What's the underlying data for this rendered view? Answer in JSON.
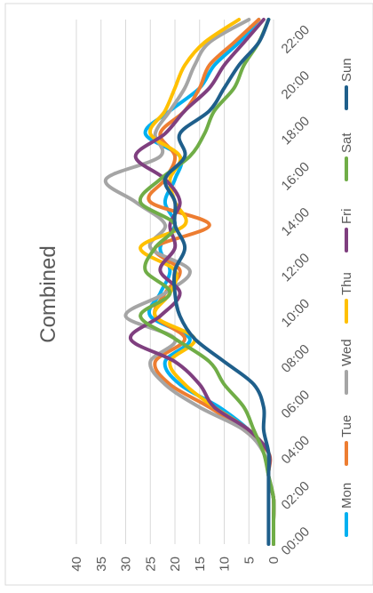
{
  "chart_data": {
    "type": "line",
    "title": "Combined",
    "xlabel": "",
    "ylabel": "",
    "x_ticks": [
      "00:00",
      "02:00",
      "04:00",
      "06:00",
      "08:00",
      "10:00",
      "12:00",
      "14:00",
      "16:00",
      "18:00",
      "20:00",
      "22:00"
    ],
    "y_ticks": [
      "0",
      "5",
      "10",
      "15",
      "20",
      "25",
      "30",
      "35",
      "40"
    ],
    "ylim": [
      0,
      40
    ],
    "xlim": [
      0,
      23
    ],
    "grid": true,
    "legend_position": "bottom",
    "orientation": "rotated-90-ccw",
    "x": [
      0,
      1,
      2,
      3,
      4,
      5,
      6,
      7,
      8,
      9,
      10,
      11,
      12,
      13,
      14,
      15,
      16,
      17,
      18,
      19,
      20,
      21,
      22,
      23
    ],
    "series": [
      {
        "name": "Mon",
        "color": "#00b0f0",
        "values": [
          0,
          0,
          0,
          1,
          1,
          5,
          11,
          19,
          22,
          17,
          25,
          23,
          21,
          23,
          20,
          22,
          20,
          19,
          26,
          21,
          15,
          12,
          7,
          3
        ]
      },
      {
        "name": "Tue",
        "color": "#ed7d31",
        "values": [
          0,
          0,
          0,
          1,
          1,
          6,
          13,
          21,
          24,
          18,
          24,
          22,
          19,
          24,
          13,
          25,
          22,
          20,
          23,
          18,
          15,
          13,
          8,
          3
        ]
      },
      {
        "name": "Wed",
        "color": "#a5a5a5",
        "values": [
          0,
          0,
          0,
          1,
          2,
          6,
          15,
          22,
          25,
          20,
          30,
          22,
          17,
          25,
          22,
          28,
          34,
          23,
          24,
          21,
          18,
          16,
          13,
          5
        ]
      },
      {
        "name": "Thu",
        "color": "#ffc000",
        "values": [
          0,
          0,
          0,
          1,
          1,
          5,
          12,
          18,
          21,
          16,
          24,
          21,
          20,
          27,
          18,
          20,
          21,
          19,
          25,
          22,
          20,
          18,
          14,
          7
        ]
      },
      {
        "name": "Fri",
        "color": "#7f3f7f",
        "values": [
          0,
          0,
          0,
          1,
          1,
          5,
          12,
          15,
          20,
          29,
          23,
          19,
          23,
          20,
          21,
          19,
          22,
          28,
          22,
          18,
          13,
          10,
          6,
          2
        ]
      },
      {
        "name": "Sat",
        "color": "#70ad47",
        "values": [
          0,
          0,
          0,
          1,
          2,
          4,
          6,
          10,
          13,
          20,
          27,
          21,
          26,
          24,
          20,
          27,
          23,
          17,
          14,
          12,
          8,
          6,
          3,
          1
        ]
      },
      {
        "name": "Sun",
        "color": "#1f5f8b",
        "values": [
          1,
          1,
          1,
          1,
          1,
          2,
          2,
          4,
          10,
          16,
          19,
          20,
          20,
          18,
          20,
          20,
          22,
          18,
          19,
          13,
          10,
          7,
          3,
          1
        ]
      }
    ]
  }
}
